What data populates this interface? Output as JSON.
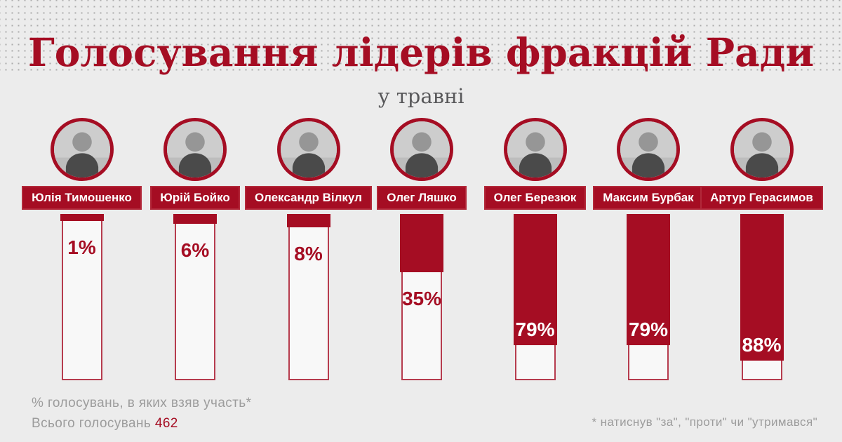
{
  "header": {
    "title": "Голосування лідерів фракцій Ради",
    "subtitle": "у травні"
  },
  "people": [
    {
      "name": "Юлія Тимошенко",
      "pct": 1,
      "label": "1%"
    },
    {
      "name": "Юрій Бойко",
      "pct": 6,
      "label": "6%"
    },
    {
      "name": "Олександр Вілкул",
      "pct": 8,
      "label": "8%"
    },
    {
      "name": "Олег Ляшко",
      "pct": 35,
      "label": "35%"
    },
    {
      "name": "Олег Березюк",
      "pct": 79,
      "label": "79%"
    },
    {
      "name": "Максим Бурбак",
      "pct": 79,
      "label": "79%"
    },
    {
      "name": "Артур Герасимов",
      "pct": 88,
      "label": "88%"
    }
  ],
  "footer": {
    "note_left_line1": "% голосувань, в яких взяв участь*",
    "note_left_line2_prefix": "Всього голосувань",
    "total_votes": "462",
    "note_right": "* натиснув \"за\", \"проти\" чи \"утримався\""
  },
  "colors": {
    "accent": "#a50d23",
    "accent_soft": "#b2293a",
    "background": "#ececec",
    "dot_pattern": "#ababab",
    "subtitle_text": "#58585a",
    "muted_text": "#9c9c9c",
    "bar_empty_fill": "#f8f8f8",
    "name_text": "#ffffff"
  },
  "chart_data": {
    "type": "bar",
    "title": "Голосування лідерів фракцій Ради",
    "subtitle": "у травні",
    "categories": [
      "Юлія Тимошенко",
      "Юрій Бойко",
      "Олександр Вілкул",
      "Олег Ляшко",
      "Олег Березюк",
      "Максим Бурбак",
      "Артур Герасимов"
    ],
    "values": [
      1,
      6,
      8,
      35,
      79,
      79,
      88
    ],
    "unit": "%",
    "ylim": [
      0,
      100
    ],
    "orientation": "vertical",
    "bars_filled_from": "top",
    "grid": false,
    "legend": false,
    "value_labels": [
      "1%",
      "6%",
      "8%",
      "35%",
      "79%",
      "79%",
      "88%"
    ],
    "total_votes": 462,
    "annotations": [
      "% голосувань, в яких взяв участь*",
      "Всього голосувань 462",
      "* натиснув \"за\", \"проти\" чи \"утримався\""
    ]
  }
}
